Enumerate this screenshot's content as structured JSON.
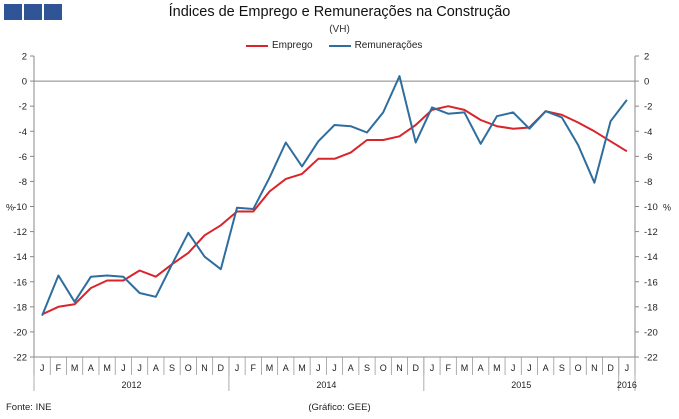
{
  "chart_data": {
    "type": "line",
    "title": "Índices de Emprego e Remunerações na Construção",
    "subtitle": "(VH)",
    "ylabel_left": "%",
    "ylabel_right": "%",
    "ylim": [
      -22,
      2
    ],
    "yticks": [
      2,
      0,
      -2,
      -4,
      -6,
      -8,
      -10,
      -12,
      -14,
      -16,
      -18,
      -20,
      -22
    ],
    "yticks_right": [
      "2",
      "0",
      "-2",
      "-4",
      "-6",
      "-8",
      "-10",
      "-12",
      "-14",
      "-16",
      "-18",
      "-20",
      "-22"
    ],
    "month_labels": [
      "J",
      "F",
      "M",
      "A",
      "M",
      "J",
      "J",
      "A",
      "S",
      "O",
      "N",
      "D",
      "J",
      "F",
      "M",
      "A",
      "M",
      "J",
      "J",
      "A",
      "S",
      "O",
      "N",
      "D",
      "J",
      "F",
      "M",
      "A",
      "M",
      "J",
      "J",
      "A",
      "S",
      "O",
      "N",
      "D",
      "J"
    ],
    "year_labels": [
      "2012",
      "2014",
      "2015",
      "2016"
    ],
    "year_spans": [
      [
        0,
        11
      ],
      [
        12,
        23
      ],
      [
        24,
        35
      ],
      [
        36,
        36
      ]
    ],
    "series": [
      {
        "name": "Emprego",
        "color": "#d9242b",
        "values": [
          -18.6,
          -18.0,
          -17.8,
          -16.5,
          -15.9,
          -15.9,
          -15.1,
          -15.6,
          -14.6,
          -13.7,
          -12.3,
          -11.5,
          -10.4,
          -10.4,
          -8.8,
          -7.8,
          -7.4,
          -6.2,
          -6.2,
          -5.7,
          -4.7,
          -4.7,
          -4.4,
          -3.5,
          -2.3,
          -2.0,
          -2.3,
          -3.1,
          -3.6,
          -3.8,
          -3.7,
          -2.4,
          -2.7,
          -3.3,
          -4.0,
          -4.8,
          -5.6
        ]
      },
      {
        "name": "Remunerações",
        "color": "#2e6e9e",
        "values": [
          -18.7,
          -15.5,
          -17.6,
          -15.6,
          -15.5,
          -15.6,
          -16.9,
          -17.2,
          -14.6,
          -12.1,
          -14.0,
          -15.0,
          -10.1,
          -10.2,
          -7.7,
          -4.9,
          -6.8,
          -4.8,
          -3.5,
          -3.6,
          -4.1,
          -2.5,
          0.4,
          -4.9,
          -2.1,
          -2.6,
          -2.5,
          -5.0,
          -2.8,
          -2.5,
          -3.8,
          -2.4,
          -2.9,
          -5.1,
          -8.1,
          -3.2,
          -1.5
        ]
      }
    ],
    "grid": false,
    "legend_position": "top-center"
  },
  "header": {
    "title": "Índices de Emprego e Remunerações na Construção",
    "subtitle": "(VH)"
  },
  "footer": {
    "source": "Fonte: INE",
    "credit": "(Gráfico: GEE)"
  },
  "logo": {
    "color": "#2f5597"
  }
}
